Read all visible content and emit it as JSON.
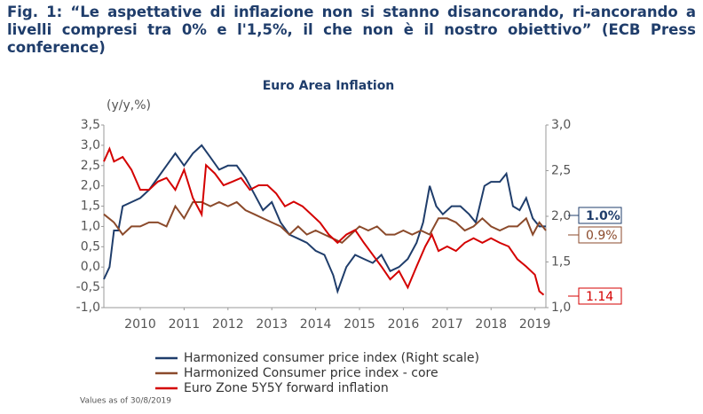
{
  "chart_data": {
    "type": "line",
    "caption": "Fig. 1: “Le aspettative di inflazione non si stanno disancorando, ri-ancorando a livelli compresi tra 0% e l'1,5%, il che non è il nostro obiettivo” (ECB Press conference)",
    "title": "Euro Area Inflation",
    "y_label": "(y/y,%)",
    "footnote": "Values as of 30/8/2019",
    "xlim": [
      2009.67,
      2019.75
    ],
    "xticks": [
      {
        "value": 2010.5,
        "label": "2010"
      },
      {
        "value": 2011.5,
        "label": "2011"
      },
      {
        "value": 2012.5,
        "label": "2012"
      },
      {
        "value": 2013.5,
        "label": "2013"
      },
      {
        "value": 2014.5,
        "label": "2014"
      },
      {
        "value": 2015.5,
        "label": "2015"
      },
      {
        "value": 2016.5,
        "label": "2016"
      },
      {
        "value": 2017.5,
        "label": "2017"
      },
      {
        "value": 2018.5,
        "label": "2018"
      },
      {
        "value": 2019.5,
        "label": "2019"
      }
    ],
    "ylim": [
      -1.0,
      3.5
    ],
    "yticks": [
      {
        "value": -1.0,
        "label": "-1,0"
      },
      {
        "value": -0.5,
        "label": "-0,5"
      },
      {
        "value": 0.0,
        "label": "0,0"
      },
      {
        "value": 0.5,
        "label": "0,5"
      },
      {
        "value": 1.0,
        "label": "1,0"
      },
      {
        "value": 1.5,
        "label": "1,5"
      },
      {
        "value": 2.0,
        "label": "2,0"
      },
      {
        "value": 2.5,
        "label": "2,5"
      },
      {
        "value": 3.0,
        "label": "3,0"
      },
      {
        "value": 3.5,
        "label": "3,5"
      }
    ],
    "y2lim": [
      1.0,
      3.0
    ],
    "y2ticks": [
      {
        "value": 1.0,
        "label": "1,0"
      },
      {
        "value": 1.5,
        "label": "1,5"
      },
      {
        "value": 2.0,
        "label": "2,0"
      },
      {
        "value": 2.5,
        "label": "2,5"
      },
      {
        "value": 3.0,
        "label": "3,0"
      }
    ],
    "series": [
      {
        "name": "Harmonized consumer price index (Right scale)",
        "color": "#1f3d6b",
        "x": [
          2009.67,
          2009.8,
          2009.9,
          2010.0,
          2010.1,
          2010.3,
          2010.5,
          2010.7,
          2010.9,
          2011.1,
          2011.3,
          2011.5,
          2011.7,
          2011.9,
          2012.1,
          2012.3,
          2012.5,
          2012.7,
          2012.9,
          2013.1,
          2013.3,
          2013.5,
          2013.7,
          2013.9,
          2014.1,
          2014.3,
          2014.5,
          2014.7,
          2014.9,
          2015.0,
          2015.2,
          2015.4,
          2015.6,
          2015.8,
          2016.0,
          2016.2,
          2016.4,
          2016.6,
          2016.8,
          2016.95,
          2017.1,
          2017.25,
          2017.4,
          2017.6,
          2017.8,
          2018.0,
          2018.15,
          2018.35,
          2018.5,
          2018.7,
          2018.85,
          2019.0,
          2019.15,
          2019.3,
          2019.45,
          2019.6,
          2019.75
        ],
        "values": [
          -0.3,
          0.0,
          0.9,
          0.9,
          1.5,
          1.6,
          1.7,
          1.9,
          2.2,
          2.5,
          2.8,
          2.5,
          2.8,
          3.0,
          2.7,
          2.4,
          2.5,
          2.5,
          2.2,
          1.8,
          1.4,
          1.6,
          1.1,
          0.8,
          0.7,
          0.6,
          0.4,
          0.3,
          -0.2,
          -0.6,
          0.0,
          0.3,
          0.2,
          0.1,
          0.3,
          -0.1,
          0.0,
          0.2,
          0.6,
          1.1,
          2.0,
          1.5,
          1.3,
          1.5,
          1.5,
          1.3,
          1.1,
          2.0,
          2.1,
          2.1,
          2.3,
          1.5,
          1.4,
          1.7,
          1.2,
          1.0,
          1.0
        ],
        "value_labels": [
          null,
          null,
          null,
          null,
          null,
          null,
          null,
          null,
          null,
          null,
          null,
          null,
          null,
          null,
          null,
          null,
          null,
          null,
          null,
          null,
          null,
          null,
          null,
          null,
          null,
          null,
          null,
          null,
          null,
          null,
          null,
          null,
          null,
          null,
          null,
          null,
          null,
          null,
          null,
          null,
          null,
          null,
          null,
          null,
          null,
          null,
          null,
          null,
          null,
          null,
          null,
          null,
          null,
          null,
          null,
          null,
          "1.0%"
        ]
      },
      {
        "name": "Harmonized Consumer price index - core",
        "color": "#8b4a2b",
        "x": [
          2009.67,
          2009.9,
          2010.1,
          2010.3,
          2010.5,
          2010.7,
          2010.9,
          2011.1,
          2011.3,
          2011.5,
          2011.7,
          2011.9,
          2012.1,
          2012.3,
          2012.5,
          2012.7,
          2012.9,
          2013.1,
          2013.3,
          2013.5,
          2013.7,
          2013.9,
          2014.1,
          2014.3,
          2014.5,
          2014.7,
          2014.9,
          2015.1,
          2015.3,
          2015.5,
          2015.7,
          2015.9,
          2016.1,
          2016.3,
          2016.5,
          2016.7,
          2016.9,
          2017.1,
          2017.3,
          2017.5,
          2017.7,
          2017.9,
          2018.1,
          2018.3,
          2018.5,
          2018.7,
          2018.9,
          2019.1,
          2019.3,
          2019.45,
          2019.6,
          2019.75
        ],
        "values": [
          1.3,
          1.1,
          0.8,
          1.0,
          1.0,
          1.1,
          1.1,
          1.0,
          1.5,
          1.2,
          1.6,
          1.6,
          1.5,
          1.6,
          1.5,
          1.6,
          1.4,
          1.3,
          1.2,
          1.1,
          1.0,
          0.8,
          1.0,
          0.8,
          0.9,
          0.8,
          0.7,
          0.6,
          0.8,
          1.0,
          0.9,
          1.0,
          0.8,
          0.8,
          0.9,
          0.8,
          0.9,
          0.8,
          1.2,
          1.2,
          1.1,
          0.9,
          1.0,
          1.2,
          1.0,
          0.9,
          1.0,
          1.0,
          1.2,
          0.8,
          1.1,
          0.9
        ],
        "value_labels": [
          null,
          null,
          null,
          null,
          null,
          null,
          null,
          null,
          null,
          null,
          null,
          null,
          null,
          null,
          null,
          null,
          null,
          null,
          null,
          null,
          null,
          null,
          null,
          null,
          null,
          null,
          null,
          null,
          null,
          null,
          null,
          null,
          null,
          null,
          null,
          null,
          null,
          null,
          null,
          null,
          null,
          null,
          null,
          null,
          null,
          null,
          null,
          null,
          null,
          null,
          null,
          "0.9%"
        ]
      },
      {
        "name": "Euro Zone 5Y5Y forward inflation",
        "color": "#d40000",
        "axis": "y2",
        "x": [
          2009.67,
          2009.8,
          2009.9,
          2010.1,
          2010.3,
          2010.5,
          2010.7,
          2010.9,
          2011.1,
          2011.3,
          2011.5,
          2011.7,
          2011.9,
          2012.0,
          2012.2,
          2012.4,
          2012.6,
          2012.8,
          2013.0,
          2013.2,
          2013.4,
          2013.6,
          2013.8,
          2014.0,
          2014.2,
          2014.4,
          2014.6,
          2014.8,
          2015.0,
          2015.2,
          2015.4,
          2015.6,
          2015.8,
          2016.0,
          2016.2,
          2016.4,
          2016.6,
          2016.8,
          2017.0,
          2017.15,
          2017.3,
          2017.5,
          2017.7,
          2017.9,
          2018.1,
          2018.3,
          2018.5,
          2018.7,
          2018.9,
          2019.1,
          2019.3,
          2019.5,
          2019.6,
          2019.7
        ],
        "values": [
          2.6,
          2.74,
          2.6,
          2.65,
          2.51,
          2.29,
          2.29,
          2.38,
          2.42,
          2.29,
          2.51,
          2.2,
          2.02,
          2.56,
          2.47,
          2.34,
          2.38,
          2.42,
          2.29,
          2.34,
          2.34,
          2.25,
          2.11,
          2.16,
          2.11,
          2.02,
          1.93,
          1.8,
          1.71,
          1.8,
          1.85,
          1.71,
          1.58,
          1.45,
          1.31,
          1.4,
          1.22,
          1.45,
          1.67,
          1.8,
          1.62,
          1.67,
          1.62,
          1.71,
          1.76,
          1.71,
          1.76,
          1.71,
          1.67,
          1.53,
          1.45,
          1.36,
          1.18,
          1.14
        ]
      }
    ]
  }
}
